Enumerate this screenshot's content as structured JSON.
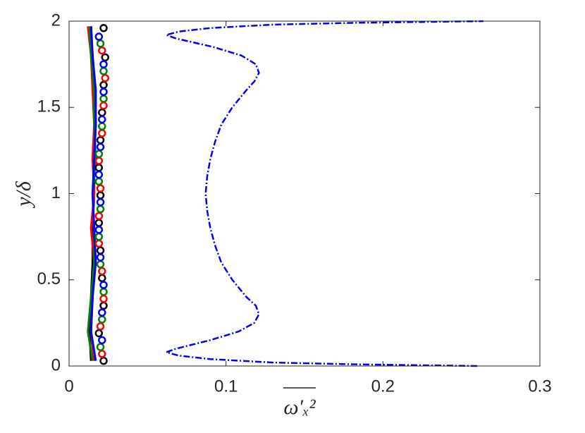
{
  "chart_data": {
    "type": "line",
    "xlabel": "ω′ₓ²",
    "ylabel": "y/δ",
    "xlim": [
      0,
      0.3
    ],
    "ylim": [
      0,
      2
    ],
    "xticks": [
      0,
      0.1,
      0.2,
      0.3
    ],
    "yticks": [
      0,
      0.5,
      1,
      1.5,
      2
    ],
    "box": true,
    "series": [
      {
        "color": "#0000ff",
        "style": "dashdot",
        "y": [
          0,
          0.01,
          0.02,
          0.04,
          0.06,
          0.08,
          0.1,
          0.15,
          0.2,
          0.25,
          0.3,
          0.35,
          0.4,
          0.5,
          0.6,
          0.7,
          0.8,
          0.9,
          1.0,
          1.1,
          1.2,
          1.3,
          1.4,
          1.5,
          1.6,
          1.65,
          1.7,
          1.75,
          1.8,
          1.85,
          1.9,
          1.92,
          1.94,
          1.96,
          1.98,
          1.99,
          2.0
        ],
        "x": [
          0.26,
          0.18,
          0.13,
          0.09,
          0.07,
          0.062,
          0.068,
          0.09,
          0.108,
          0.118,
          0.121,
          0.119,
          0.113,
          0.104,
          0.097,
          0.093,
          0.09,
          0.088,
          0.087,
          0.088,
          0.09,
          0.093,
          0.097,
          0.104,
          0.113,
          0.118,
          0.121,
          0.119,
          0.11,
          0.092,
          0.068,
          0.062,
          0.07,
          0.09,
          0.13,
          0.18,
          0.264
        ]
      },
      {
        "color": "#000000",
        "style": "solid",
        "y": [
          0.03,
          0.2,
          0.4,
          0.6,
          0.8,
          1.0,
          1.2,
          1.4,
          1.6,
          1.8,
          1.97
        ],
        "x": [
          0.014,
          0.013,
          0.014,
          0.015,
          0.015,
          0.016,
          0.016,
          0.017,
          0.016,
          0.015,
          0.014
        ]
      },
      {
        "color": "#ff0000",
        "style": "solid",
        "y": [
          0.03,
          0.2,
          0.4,
          0.6,
          0.8,
          1.0,
          1.2,
          1.4,
          1.6,
          1.8,
          1.97
        ],
        "x": [
          0.016,
          0.014,
          0.015,
          0.016,
          0.014,
          0.016,
          0.015,
          0.016,
          0.015,
          0.014,
          0.012
        ]
      },
      {
        "color": "#008000",
        "style": "solid",
        "y": [
          0.03,
          0.2,
          0.4,
          0.6,
          0.8,
          1.0,
          1.2,
          1.4,
          1.6,
          1.8,
          1.97
        ],
        "x": [
          0.015,
          0.012,
          0.014,
          0.016,
          0.016,
          0.015,
          0.017,
          0.016,
          0.016,
          0.014,
          0.013
        ]
      },
      {
        "color": "#0000ff",
        "style": "solid",
        "y": [
          0.03,
          0.2,
          0.4,
          0.6,
          0.8,
          1.0,
          1.2,
          1.4,
          1.6,
          1.8,
          1.97
        ],
        "x": [
          0.017,
          0.014,
          0.015,
          0.017,
          0.016,
          0.015,
          0.016,
          0.017,
          0.017,
          0.015,
          0.014
        ]
      },
      {
        "color": "#000000",
        "style": "circle",
        "y": [
          0.03,
          0.19,
          0.35,
          0.51,
          0.67,
          0.83,
          0.99,
          1.15,
          1.31,
          1.47,
          1.63,
          1.79,
          1.96
        ],
        "x": [
          0.022,
          0.019,
          0.022,
          0.021,
          0.02,
          0.019,
          0.02,
          0.019,
          0.02,
          0.021,
          0.022,
          0.023,
          0.022
        ]
      },
      {
        "color": "#ff0000",
        "style": "circle",
        "y": [
          0.07,
          0.23,
          0.39,
          0.55,
          0.71,
          0.87,
          1.03,
          1.19,
          1.35,
          1.51,
          1.67,
          1.83
        ],
        "x": [
          0.021,
          0.02,
          0.022,
          0.021,
          0.019,
          0.019,
          0.02,
          0.019,
          0.021,
          0.022,
          0.023,
          0.021
        ]
      },
      {
        "color": "#008000",
        "style": "circle",
        "y": [
          0.11,
          0.27,
          0.43,
          0.59,
          0.75,
          0.91,
          1.07,
          1.23,
          1.39,
          1.55,
          1.71,
          1.87
        ],
        "x": [
          0.02,
          0.021,
          0.022,
          0.02,
          0.019,
          0.02,
          0.019,
          0.019,
          0.021,
          0.022,
          0.022,
          0.02
        ]
      },
      {
        "color": "#0000ff",
        "style": "circle",
        "y": [
          0.15,
          0.31,
          0.47,
          0.63,
          0.79,
          0.95,
          1.11,
          1.27,
          1.43,
          1.59,
          1.75,
          1.91
        ],
        "x": [
          0.021,
          0.021,
          0.022,
          0.02,
          0.019,
          0.02,
          0.019,
          0.02,
          0.021,
          0.022,
          0.022,
          0.019
        ]
      }
    ]
  }
}
